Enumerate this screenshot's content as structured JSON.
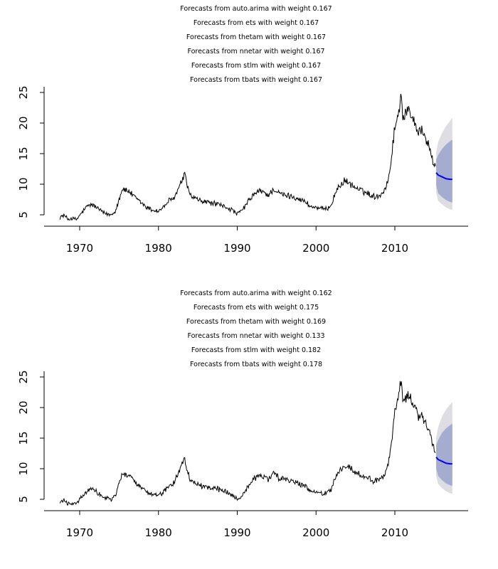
{
  "colors": {
    "history": "#000000",
    "forecast": "#0000ff",
    "band80": "#a4acd0",
    "band95": "#dddde3",
    "axis": "#000000"
  },
  "chart_data": [
    {
      "type": "line",
      "title_lines": [
        "Forecasts from auto.arima with weight 0.167",
        "Forecasts from ets with weight 0.167",
        "Forecasts from thetam with weight 0.167",
        "Forecasts from nnetar with weight 0.167",
        "Forecasts from stlm with weight 0.167",
        "Forecasts from tbats with weight 0.167"
      ],
      "xlabel": "",
      "ylabel": "",
      "xlim": [
        1967.0,
        2018.0
      ],
      "ylim": [
        4.0,
        26.0
      ],
      "xticks": [
        1970,
        1980,
        1990,
        2000,
        2010
      ],
      "xtick_labels": [
        "1970",
        "1980",
        "1990",
        "2000",
        "2010"
      ],
      "yticks": [
        5,
        10,
        15,
        20,
        25
      ],
      "ytick_labels": [
        "5",
        "10",
        "15",
        "20",
        "25"
      ],
      "history_anchors": [
        [
          1967.5,
          4.6
        ],
        [
          1968.0,
          4.9
        ],
        [
          1968.5,
          4.3
        ],
        [
          1969.0,
          4.4
        ],
        [
          1969.6,
          4.2
        ],
        [
          1970.0,
          4.9
        ],
        [
          1970.5,
          5.7
        ],
        [
          1971.0,
          6.4
        ],
        [
          1971.5,
          6.7
        ],
        [
          1972.0,
          6.3
        ],
        [
          1972.5,
          5.9
        ],
        [
          1973.0,
          5.3
        ],
        [
          1973.5,
          5.1
        ],
        [
          1974.0,
          5.0
        ],
        [
          1974.5,
          5.6
        ],
        [
          1975.0,
          7.5
        ],
        [
          1975.4,
          9.3
        ],
        [
          1975.8,
          9.0
        ],
        [
          1976.3,
          8.8
        ],
        [
          1977.0,
          7.8
        ],
        [
          1977.8,
          7.0
        ],
        [
          1978.5,
          6.2
        ],
        [
          1979.2,
          5.8
        ],
        [
          1980.0,
          5.6
        ],
        [
          1980.7,
          6.3
        ],
        [
          1981.3,
          7.3
        ],
        [
          1981.8,
          7.4
        ],
        [
          1982.3,
          8.6
        ],
        [
          1982.8,
          10.0
        ],
        [
          1983.3,
          11.6
        ],
        [
          1983.6,
          10.2
        ],
        [
          1984.0,
          8.2
        ],
        [
          1984.7,
          7.6
        ],
        [
          1985.5,
          7.2
        ],
        [
          1986.5,
          7.0
        ],
        [
          1987.5,
          6.7
        ],
        [
          1988.5,
          6.3
        ],
        [
          1989.3,
          5.8
        ],
        [
          1990.0,
          5.1
        ],
        [
          1990.6,
          5.7
        ],
        [
          1991.3,
          7.0
        ],
        [
          1992.0,
          8.2
        ],
        [
          1992.8,
          8.9
        ],
        [
          1993.3,
          8.7
        ],
        [
          1994.0,
          8.2
        ],
        [
          1994.6,
          9.2
        ],
        [
          1995.3,
          8.5
        ],
        [
          1996.0,
          8.2
        ],
        [
          1997.0,
          8.0
        ],
        [
          1998.0,
          7.5
        ],
        [
          1998.8,
          7.0
        ],
        [
          1999.3,
          6.3
        ],
        [
          2000.0,
          6.2
        ],
        [
          2000.6,
          6.0
        ],
        [
          2001.3,
          5.9
        ],
        [
          2001.9,
          6.6
        ],
        [
          2002.5,
          8.7
        ],
        [
          2003.0,
          9.8
        ],
        [
          2003.6,
          10.5
        ],
        [
          2004.2,
          10.2
        ],
        [
          2004.8,
          9.6
        ],
        [
          2005.3,
          9.2
        ],
        [
          2006.0,
          8.8
        ],
        [
          2006.6,
          8.5
        ],
        [
          2007.3,
          8.0
        ],
        [
          2008.0,
          8.1
        ],
        [
          2008.6,
          8.9
        ],
        [
          2009.1,
          10.3
        ],
        [
          2009.5,
          13.5
        ],
        [
          2009.9,
          18.5
        ],
        [
          2010.3,
          20.5
        ],
        [
          2010.6,
          23.0
        ],
        [
          2010.8,
          25.2
        ],
        [
          2011.0,
          21.0
        ],
        [
          2011.4,
          21.5
        ],
        [
          2011.8,
          22.2
        ],
        [
          2012.2,
          21.0
        ],
        [
          2012.6,
          20.0
        ],
        [
          2013.0,
          18.5
        ],
        [
          2013.4,
          19.0
        ],
        [
          2013.8,
          17.5
        ],
        [
          2014.2,
          16.8
        ],
        [
          2014.5,
          15.5
        ],
        [
          2014.8,
          13.8
        ],
        [
          2015.2,
          12.9
        ]
      ],
      "forecast": {
        "x": [
          2015.25,
          2015.5,
          2016.0,
          2016.5,
          2017.0,
          2017.3
        ],
        "mean": [
          11.9,
          11.5,
          11.2,
          10.9,
          10.8,
          10.8
        ],
        "lower80": [
          9.8,
          8.5,
          7.9,
          7.4,
          7.1,
          7.0
        ],
        "upper80": [
          14.0,
          14.8,
          15.8,
          16.5,
          17.0,
          17.3
        ],
        "lower95": [
          8.6,
          7.3,
          6.7,
          6.2,
          5.9,
          5.8
        ],
        "upper95": [
          15.2,
          16.9,
          18.4,
          19.5,
          20.3,
          20.9
        ]
      }
    },
    {
      "type": "line",
      "title_lines": [
        "Forecasts from auto.arima with weight 0.162",
        "Forecasts from ets with weight 0.175",
        "Forecasts from thetam with weight 0.169",
        "Forecasts from nnetar with weight 0.133",
        "Forecasts from stlm with weight 0.182",
        "Forecasts from tbats with weight 0.178"
      ],
      "xlabel": "",
      "ylabel": "",
      "xlim": [
        1967.0,
        2018.0
      ],
      "ylim": [
        4.0,
        26.0
      ],
      "xticks": [
        1970,
        1980,
        1990,
        2000,
        2010
      ],
      "xtick_labels": [
        "1970",
        "1980",
        "1990",
        "2000",
        "2010"
      ],
      "yticks": [
        5,
        10,
        15,
        20,
        25
      ],
      "ytick_labels": [
        "5",
        "10",
        "15",
        "20",
        "25"
      ],
      "history_anchors": [
        [
          1967.5,
          4.6
        ],
        [
          1968.0,
          4.9
        ],
        [
          1968.5,
          4.3
        ],
        [
          1969.0,
          4.4
        ],
        [
          1969.6,
          4.2
        ],
        [
          1970.0,
          4.9
        ],
        [
          1970.5,
          5.7
        ],
        [
          1971.0,
          6.4
        ],
        [
          1971.5,
          6.7
        ],
        [
          1972.0,
          6.3
        ],
        [
          1972.5,
          5.9
        ],
        [
          1973.0,
          5.3
        ],
        [
          1973.5,
          5.1
        ],
        [
          1974.0,
          5.0
        ],
        [
          1974.5,
          5.6
        ],
        [
          1975.0,
          7.5
        ],
        [
          1975.4,
          9.3
        ],
        [
          1975.8,
          9.0
        ],
        [
          1976.3,
          8.8
        ],
        [
          1977.0,
          7.8
        ],
        [
          1977.8,
          7.0
        ],
        [
          1978.5,
          6.2
        ],
        [
          1979.2,
          5.8
        ],
        [
          1980.0,
          5.6
        ],
        [
          1980.7,
          6.3
        ],
        [
          1981.3,
          7.3
        ],
        [
          1981.8,
          7.4
        ],
        [
          1982.3,
          8.6
        ],
        [
          1982.8,
          10.0
        ],
        [
          1983.3,
          11.6
        ],
        [
          1983.6,
          10.2
        ],
        [
          1984.0,
          8.2
        ],
        [
          1984.7,
          7.6
        ],
        [
          1985.5,
          7.2
        ],
        [
          1986.5,
          7.0
        ],
        [
          1987.5,
          6.7
        ],
        [
          1988.5,
          6.3
        ],
        [
          1989.3,
          5.8
        ],
        [
          1990.0,
          5.1
        ],
        [
          1990.6,
          5.7
        ],
        [
          1991.3,
          7.0
        ],
        [
          1992.0,
          8.2
        ],
        [
          1992.8,
          8.9
        ],
        [
          1993.3,
          8.7
        ],
        [
          1994.0,
          8.2
        ],
        [
          1994.6,
          9.2
        ],
        [
          1995.3,
          8.5
        ],
        [
          1996.0,
          8.2
        ],
        [
          1997.0,
          8.0
        ],
        [
          1998.0,
          7.5
        ],
        [
          1998.8,
          7.0
        ],
        [
          1999.3,
          6.3
        ],
        [
          2000.0,
          6.2
        ],
        [
          2000.6,
          6.0
        ],
        [
          2001.3,
          5.9
        ],
        [
          2001.9,
          6.6
        ],
        [
          2002.5,
          8.7
        ],
        [
          2003.0,
          9.8
        ],
        [
          2003.6,
          10.5
        ],
        [
          2004.2,
          10.2
        ],
        [
          2004.8,
          9.6
        ],
        [
          2005.3,
          9.2
        ],
        [
          2006.0,
          8.8
        ],
        [
          2006.6,
          8.5
        ],
        [
          2007.3,
          8.0
        ],
        [
          2008.0,
          8.1
        ],
        [
          2008.6,
          8.9
        ],
        [
          2009.1,
          10.3
        ],
        [
          2009.5,
          13.5
        ],
        [
          2009.9,
          18.5
        ],
        [
          2010.3,
          20.5
        ],
        [
          2010.6,
          23.0
        ],
        [
          2010.8,
          25.2
        ],
        [
          2011.0,
          21.0
        ],
        [
          2011.4,
          21.5
        ],
        [
          2011.8,
          22.2
        ],
        [
          2012.2,
          21.0
        ],
        [
          2012.6,
          20.0
        ],
        [
          2013.0,
          18.5
        ],
        [
          2013.4,
          19.0
        ],
        [
          2013.8,
          17.5
        ],
        [
          2014.2,
          16.8
        ],
        [
          2014.5,
          15.5
        ],
        [
          2014.8,
          13.8
        ],
        [
          2015.2,
          12.9
        ]
      ],
      "forecast": {
        "x": [
          2015.25,
          2015.5,
          2016.0,
          2016.5,
          2017.0,
          2017.3
        ],
        "mean": [
          11.9,
          11.5,
          11.2,
          10.9,
          10.8,
          10.8
        ],
        "lower80": [
          10.0,
          8.8,
          8.1,
          7.6,
          7.3,
          7.2
        ],
        "upper80": [
          13.9,
          14.7,
          15.9,
          16.6,
          17.1,
          17.4
        ],
        "lower95": [
          8.9,
          7.5,
          6.8,
          6.3,
          6.0,
          5.9
        ],
        "upper95": [
          15.1,
          16.8,
          18.6,
          19.7,
          20.5,
          20.9
        ]
      }
    }
  ]
}
